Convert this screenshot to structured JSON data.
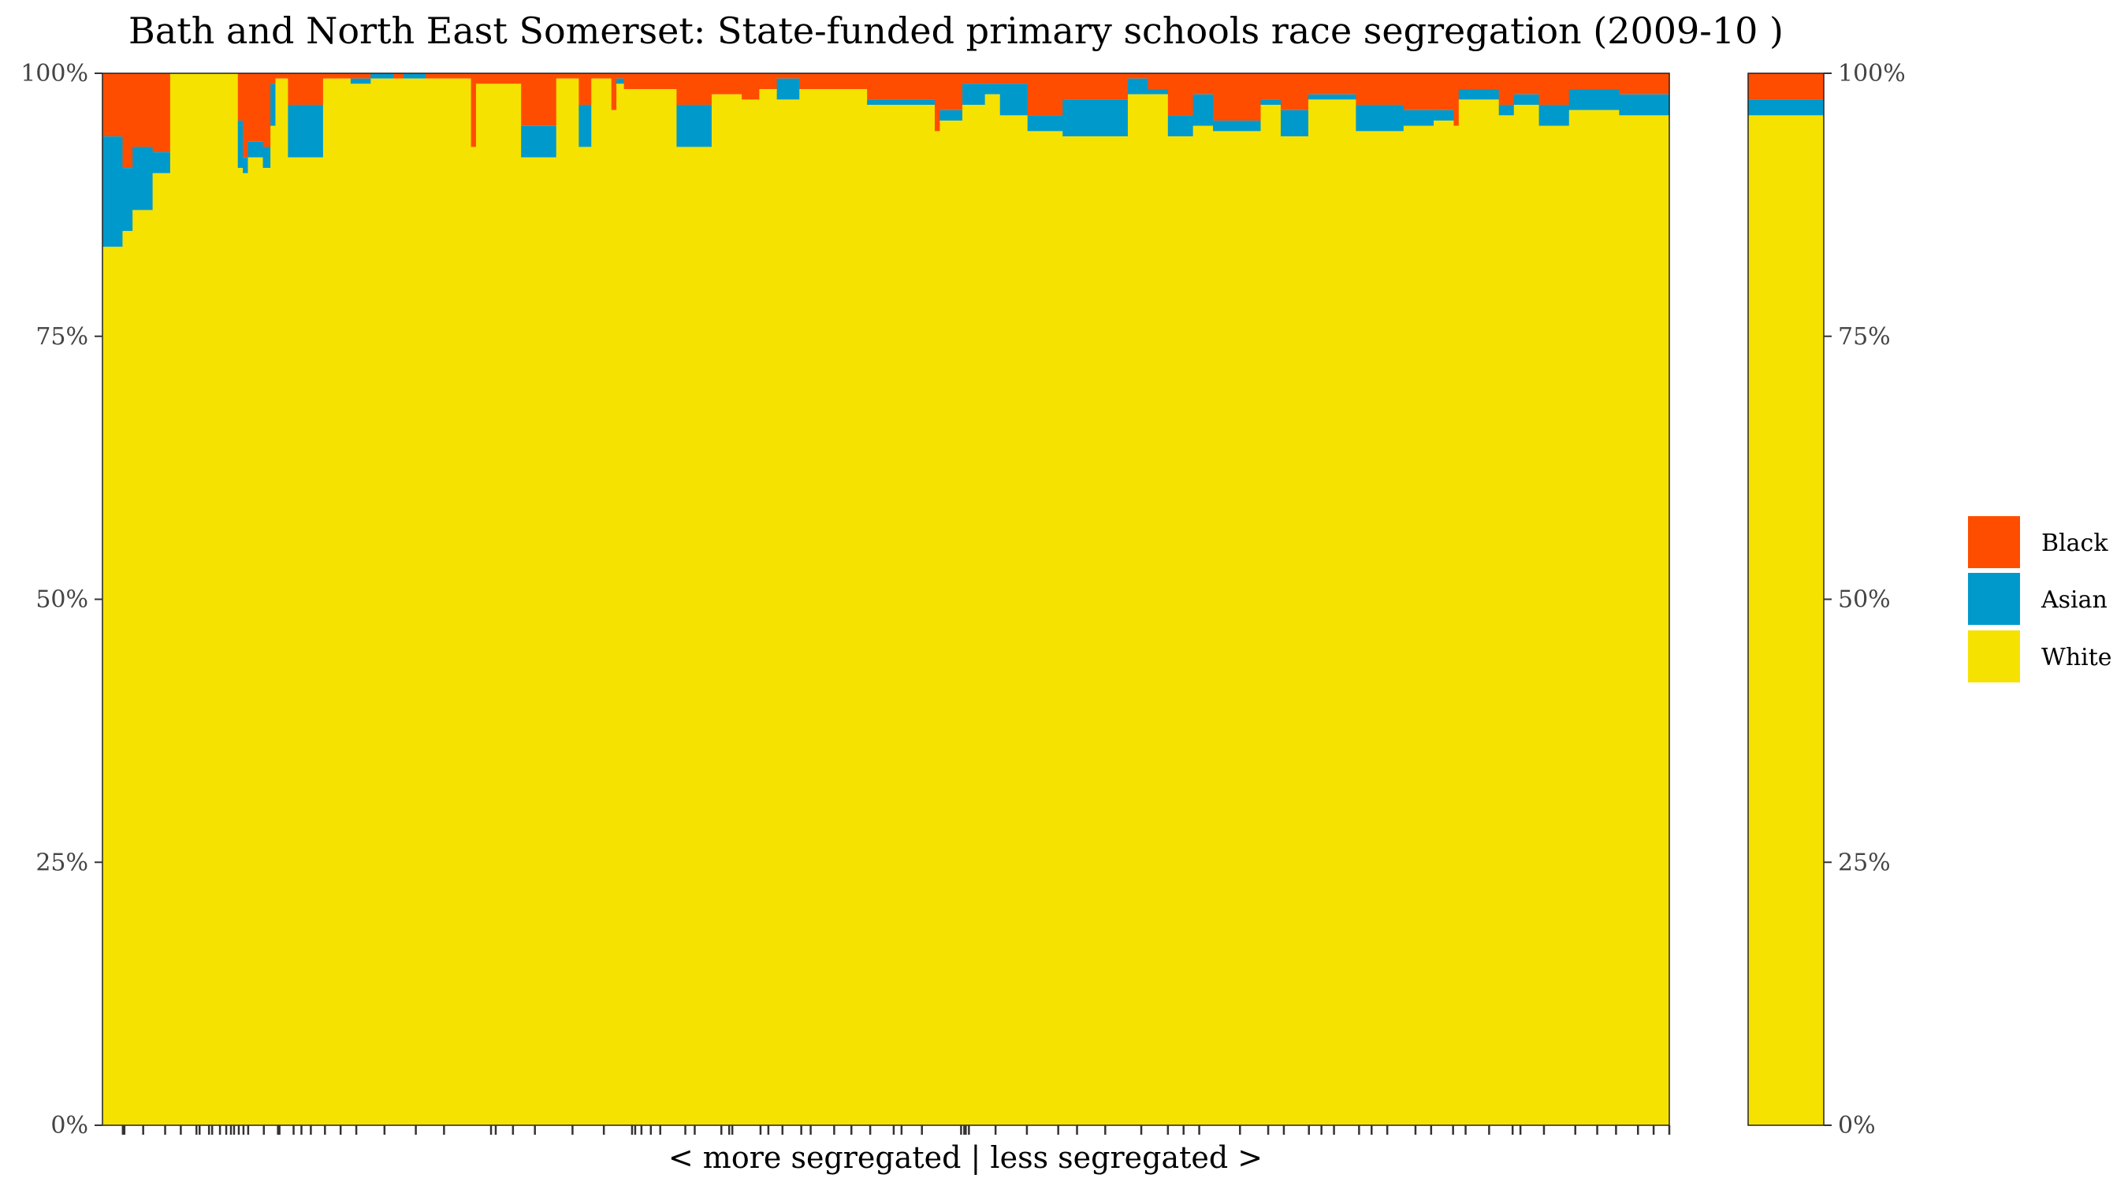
{
  "chart_data": {
    "type": "bar",
    "title": "Bath and North East Somerset: State-funded primary schools race segregation (2009-10 )",
    "xlabel": "< more segregated | less segregated >",
    "ylabel": "",
    "ylim": [
      0,
      100
    ],
    "y_ticks": [
      "0%",
      "25%",
      "50%",
      "75%",
      "100%"
    ],
    "stack_order_bottom_to_top": [
      "White",
      "Asian",
      "Black"
    ],
    "legend": {
      "position": "right",
      "entries": [
        {
          "name": "Black",
          "color": "#FF4D00"
        },
        {
          "name": "Asian",
          "color": "#0099CC"
        },
        {
          "name": "White",
          "color": "#F5E200"
        }
      ]
    },
    "schools": [
      {
        "w": 8,
        "white": 83.5,
        "asian": 10.5
      },
      {
        "w": 4,
        "white": 85,
        "asian": 6
      },
      {
        "w": 8,
        "white": 87,
        "asian": 6
      },
      {
        "w": 7,
        "white": 90.5,
        "asian": 2
      },
      {
        "w": 27,
        "white": 100,
        "asian": 0
      },
      {
        "w": 2,
        "white": 91,
        "asian": 4.5
      },
      {
        "w": 2,
        "white": 90.5,
        "asian": 1.5
      },
      {
        "w": 6,
        "white": 92,
        "asian": 1.5
      },
      {
        "w": 3,
        "white": 91,
        "asian": 2
      },
      {
        "w": 2,
        "white": 95,
        "asian": 4
      },
      {
        "w": 5,
        "white": 99.5,
        "asian": 0
      },
      {
        "w": 14,
        "white": 92,
        "asian": 5
      },
      {
        "w": 4,
        "white": 99.5,
        "asian": 0
      },
      {
        "w": 7,
        "white": 99.5,
        "asian": 0
      },
      {
        "w": 8,
        "white": 99,
        "asian": 0.5
      },
      {
        "w": 9,
        "white": 99.5,
        "asian": 0.5
      },
      {
        "w": 4,
        "white": 99.5,
        "asian": 0
      },
      {
        "w": 9,
        "white": 99.5,
        "asian": 0.5
      },
      {
        "w": 18,
        "white": 99.5,
        "asian": 0
      },
      {
        "w": 2,
        "white": 93,
        "asian": 0
      },
      {
        "w": 18,
        "white": 99,
        "asian": 0
      },
      {
        "w": 14,
        "white": 92,
        "asian": 3
      },
      {
        "w": 9,
        "white": 99.5,
        "asian": 0
      },
      {
        "w": 5,
        "white": 93,
        "asian": 4
      },
      {
        "w": 6,
        "white": 99.5,
        "asian": 0
      },
      {
        "w": 2,
        "white": 99.5,
        "asian": 0
      },
      {
        "w": 2,
        "white": 96.5,
        "asian": 0
      },
      {
        "w": 3,
        "white": 99,
        "asian": 0.5
      },
      {
        "w": 18,
        "white": 98.5,
        "asian": 0
      },
      {
        "w": 3,
        "white": 98.5,
        "asian": 0
      },
      {
        "w": 14,
        "white": 93,
        "asian": 4
      },
      {
        "w": 12,
        "white": 98,
        "asian": 0
      },
      {
        "w": 7,
        "white": 97.5,
        "asian": 0
      },
      {
        "w": 7,
        "white": 98.5,
        "asian": 0
      },
      {
        "w": 9,
        "white": 97.5,
        "asian": 2
      },
      {
        "w": 27,
        "white": 98.5,
        "asian": 0
      },
      {
        "w": 27,
        "white": 97,
        "asian": 0.5
      },
      {
        "w": 2,
        "white": 94.5,
        "asian": 0
      },
      {
        "w": 9,
        "white": 95.5,
        "asian": 1
      },
      {
        "w": 9,
        "white": 97,
        "asian": 2
      },
      {
        "w": 6,
        "white": 98,
        "asian": 1
      },
      {
        "w": 11,
        "white": 96,
        "asian": 3
      },
      {
        "w": 14,
        "white": 94.5,
        "asian": 1.5
      },
      {
        "w": 26,
        "white": 94,
        "asian": 3.5
      },
      {
        "w": 8,
        "white": 98,
        "asian": 1.5
      },
      {
        "w": 8,
        "white": 98,
        "asian": 0.5
      },
      {
        "w": 10,
        "white": 94,
        "asian": 2
      },
      {
        "w": 8,
        "white": 95,
        "asian": 3
      },
      {
        "w": 19,
        "white": 94.5,
        "asian": 1
      },
      {
        "w": 8,
        "white": 97,
        "asian": 0.5
      },
      {
        "w": 11,
        "white": 94,
        "asian": 2.5
      },
      {
        "w": 19,
        "white": 97.5,
        "asian": 0.5
      },
      {
        "w": 19,
        "white": 94.5,
        "asian": 2.5
      },
      {
        "w": 12,
        "white": 95,
        "asian": 1.5
      },
      {
        "w": 8,
        "white": 95.5,
        "asian": 1
      },
      {
        "w": 2,
        "white": 95,
        "asian": 0
      },
      {
        "w": 16,
        "white": 97.5,
        "asian": 1
      },
      {
        "w": 6,
        "white": 96,
        "asian": 1
      },
      {
        "w": 10,
        "white": 97,
        "asian": 1
      },
      {
        "w": 12,
        "white": 95,
        "asian": 2
      },
      {
        "w": 20,
        "white": 96.5,
        "asian": 2
      },
      {
        "w": 20,
        "white": 96,
        "asian": 2
      }
    ],
    "summary_bar": {
      "white": 96,
      "asian": 1.5,
      "black": 2.5
    },
    "rug_x_fractions": [
      0.013,
      0.014,
      0.026,
      0.04,
      0.05,
      0.06,
      0.062,
      0.068,
      0.07,
      0.075,
      0.079,
      0.082,
      0.084,
      0.087,
      0.09,
      0.093,
      0.103,
      0.112,
      0.113,
      0.122,
      0.127,
      0.133,
      0.142,
      0.152,
      0.162,
      0.18,
      0.2,
      0.218,
      0.248,
      0.251,
      0.262,
      0.276,
      0.3,
      0.32,
      0.338,
      0.35,
      0.34,
      0.344,
      0.356,
      0.372,
      0.378,
      0.395,
      0.4,
      0.402,
      0.42,
      0.425,
      0.434,
      0.446,
      0.452,
      0.467,
      0.478,
      0.49,
      0.505,
      0.51,
      0.523,
      0.548,
      0.55,
      0.551,
      0.553,
      0.57,
      0.59,
      0.61,
      0.622,
      0.64,
      0.663,
      0.68,
      0.69,
      0.7,
      0.726,
      0.744,
      0.754,
      0.77,
      0.778,
      0.786,
      0.802,
      0.81,
      0.82,
      0.838,
      0.848,
      0.862,
      0.87,
      0.885,
      0.9,
      0.905,
      0.92,
      0.94,
      0.954,
      0.966,
      0.98,
      0.99,
      1.0
    ]
  }
}
